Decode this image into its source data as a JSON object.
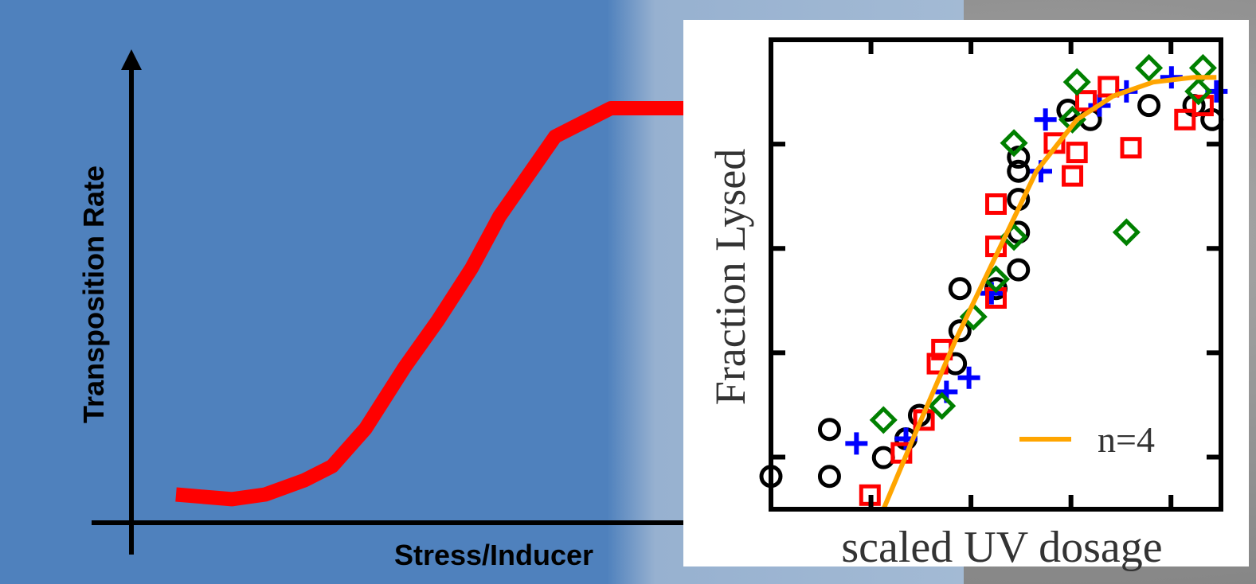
{
  "chart_data": [
    {
      "type": "line",
      "xlabel": "Stress/Inducer",
      "ylabel": "Transposition Rate",
      "x": [
        0.8,
        1.8,
        2.4,
        3.1,
        3.6,
        4.2,
        4.9,
        5.5,
        6.1,
        6.6,
        7.6,
        8.6,
        9.9
      ],
      "series": [
        {
          "color": "#ff0000",
          "values": [
            0.6,
            0.5,
            0.6,
            0.9,
            1.2,
            2.0,
            3.3,
            4.3,
            5.4,
            6.5,
            8.2,
            8.8,
            8.8
          ]
        }
      ],
      "xlim": [
        0,
        10
      ],
      "ylim": [
        0,
        10
      ]
    },
    {
      "type": "scatter",
      "xlabel": "scaled UV dosage",
      "ylabel": "Fraction Lysed",
      "xlim": [
        0,
        1
      ],
      "ylim": [
        0,
        1
      ],
      "series": [
        {
          "color": "#000000",
          "marker": "circle",
          "x": [
            0,
            0.13,
            0.13,
            0.25,
            0.3,
            0.33,
            0.41,
            0.42,
            0.42,
            0.5,
            0.55,
            0.55,
            0.55,
            0.55,
            0.55,
            0.66,
            0.71,
            0.84,
            0.94,
            0.98
          ],
          "values": [
            0.07,
            0.07,
            0.17,
            0.11,
            0.15,
            0.2,
            0.31,
            0.38,
            0.47,
            0.47,
            0.51,
            0.59,
            0.66,
            0.72,
            0.75,
            0.85,
            0.83,
            0.86,
            0.86,
            0.83
          ]
        },
        {
          "color": "#0000ff",
          "marker": "plus",
          "x": [
            0.19,
            0.3,
            0.39,
            0.44,
            0.49,
            0.6,
            0.61,
            0.73,
            0.79,
            0.89,
            0.99
          ],
          "values": [
            0.14,
            0.15,
            0.25,
            0.28,
            0.46,
            0.72,
            0.83,
            0.86,
            0.89,
            0.92,
            0.89
          ]
        },
        {
          "color": "#ff0000",
          "marker": "square",
          "x": [
            0.22,
            0.29,
            0.34,
            0.37,
            0.38,
            0.5,
            0.5,
            0.5,
            0.63,
            0.67,
            0.68,
            0.7,
            0.75,
            0.8,
            0.92,
            0.96
          ],
          "values": [
            0.03,
            0.12,
            0.19,
            0.31,
            0.34,
            0.45,
            0.56,
            0.65,
            0.78,
            0.71,
            0.76,
            0.87,
            0.9,
            0.77,
            0.83,
            0.86
          ]
        },
        {
          "color": "#008000",
          "marker": "diamond",
          "x": [
            0.25,
            0.38,
            0.45,
            0.5,
            0.54,
            0.54,
            0.67,
            0.68,
            0.79,
            0.84,
            0.95,
            0.96
          ],
          "values": [
            0.19,
            0.22,
            0.41,
            0.49,
            0.58,
            0.78,
            0.83,
            0.91,
            0.59,
            0.94,
            0.89,
            0.94
          ]
        },
        {
          "name": "n=4",
          "color": "#ffa500",
          "mode": "line",
          "x": [
            0.25,
            0.32,
            0.41,
            0.5,
            0.59,
            0.68,
            0.76,
            0.85,
            0.94,
            0.99
          ],
          "values": [
            0,
            0.16,
            0.36,
            0.54,
            0.72,
            0.83,
            0.88,
            0.91,
            0.92,
            0.92
          ]
        }
      ]
    }
  ]
}
